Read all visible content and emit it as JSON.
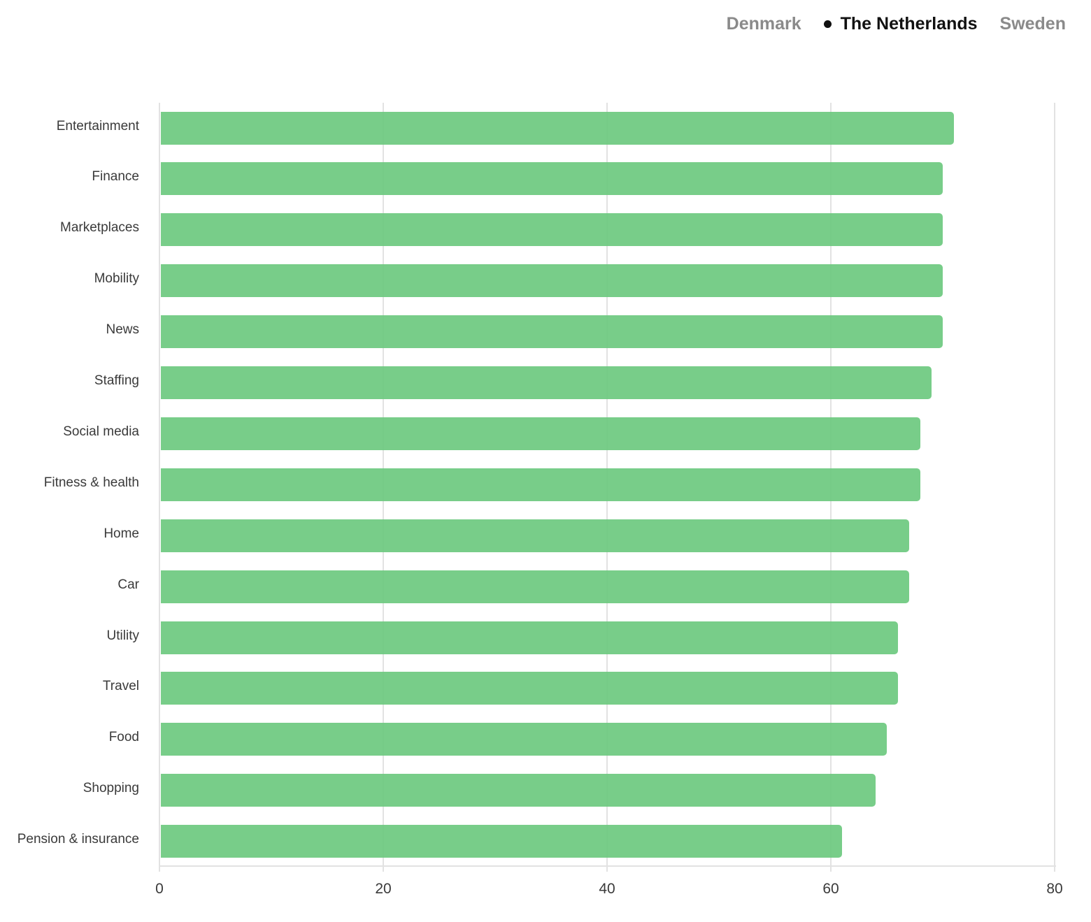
{
  "legend": {
    "items": [
      {
        "label": "Denmark",
        "active": false
      },
      {
        "label": "The Netherlands",
        "active": true
      },
      {
        "label": "Sweden",
        "active": false
      }
    ]
  },
  "colors": {
    "bar": "#6cc97f",
    "grid": "#e2e2e2",
    "active_legend": "#111111",
    "inactive_legend": "#8a8a8a"
  },
  "chart_data": {
    "type": "bar",
    "orientation": "horizontal",
    "title": "",
    "selected_series": "The Netherlands",
    "series_options": [
      "Denmark",
      "The Netherlands",
      "Sweden"
    ],
    "categories": [
      "Entertainment",
      "Finance",
      "Marketplaces",
      "Mobility",
      "News",
      "Staffing",
      "Social media",
      "Fitness & health",
      "Home",
      "Car",
      "Utility",
      "Travel",
      "Food",
      "Shopping",
      "Pension & insurance"
    ],
    "series": [
      {
        "name": "The Netherlands",
        "values": [
          71,
          70,
          70,
          70,
          70,
          69,
          68,
          68,
          67,
          67,
          66,
          66,
          65,
          64,
          61
        ]
      }
    ],
    "xlabel": "",
    "ylabel": "",
    "xlim": [
      0,
      80
    ],
    "xticks": [
      "0",
      "20",
      "40",
      "60",
      "80"
    ],
    "grid": true,
    "legend_position": "top-right"
  }
}
